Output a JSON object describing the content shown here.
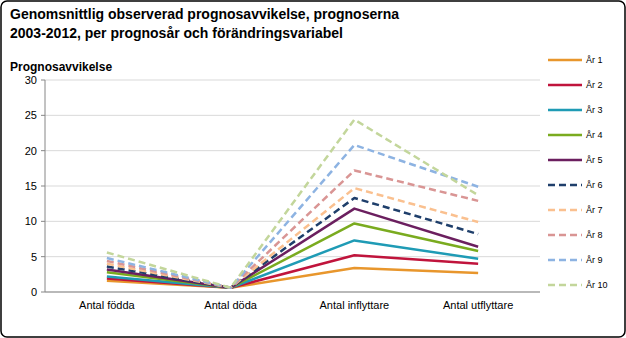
{
  "chart_data": {
    "type": "line",
    "title": [
      "Genomsnittlig observerad prognosavvikelse, prognoserna",
      "2003-2012, per prognosår och förändringsvariabel"
    ],
    "y_label": "Prognosavvikelse",
    "categories": [
      "Antal födda",
      "Antal döda",
      "Antal inflyttare",
      "Antal utflyttare"
    ],
    "ylim": [
      0,
      30
    ],
    "yticks": [
      0,
      5,
      10,
      15,
      20,
      25,
      30
    ],
    "grid": true,
    "legend": "right",
    "series": [
      {
        "name": "År 1",
        "color": "#e8962c",
        "line_style": "solid",
        "values": [
          1.6,
          0.6,
          3.4,
          2.7
        ]
      },
      {
        "name": "År 2",
        "color": "#c0143c",
        "line_style": "solid",
        "values": [
          1.9,
          0.6,
          5.2,
          4.0
        ]
      },
      {
        "name": "År 3",
        "color": "#1f9bb5",
        "line_style": "solid",
        "values": [
          2.2,
          0.6,
          7.3,
          4.7
        ]
      },
      {
        "name": "År 4",
        "color": "#7aab1f",
        "line_style": "solid",
        "values": [
          2.8,
          0.6,
          9.7,
          5.8
        ]
      },
      {
        "name": "År 5",
        "color": "#6b1f5f",
        "line_style": "solid",
        "values": [
          3.2,
          0.6,
          11.8,
          6.4
        ]
      },
      {
        "name": "År 6",
        "color": "#1f3f6b",
        "line_style": "dashed",
        "values": [
          3.6,
          0.6,
          13.3,
          8.2
        ]
      },
      {
        "name": "År 7",
        "color": "#fac08f",
        "line_style": "dashed",
        "values": [
          4.0,
          0.6,
          14.7,
          9.9
        ]
      },
      {
        "name": "År 8",
        "color": "#d99594",
        "line_style": "dashed",
        "values": [
          4.4,
          0.6,
          17.2,
          12.9
        ]
      },
      {
        "name": "År 9",
        "color": "#8db3e2",
        "line_style": "dashed",
        "values": [
          4.8,
          0.6,
          20.8,
          14.9
        ]
      },
      {
        "name": "År 10",
        "color": "#c3d69b",
        "line_style": "dashed",
        "values": [
          5.6,
          0.6,
          24.4,
          13.7
        ]
      }
    ]
  }
}
